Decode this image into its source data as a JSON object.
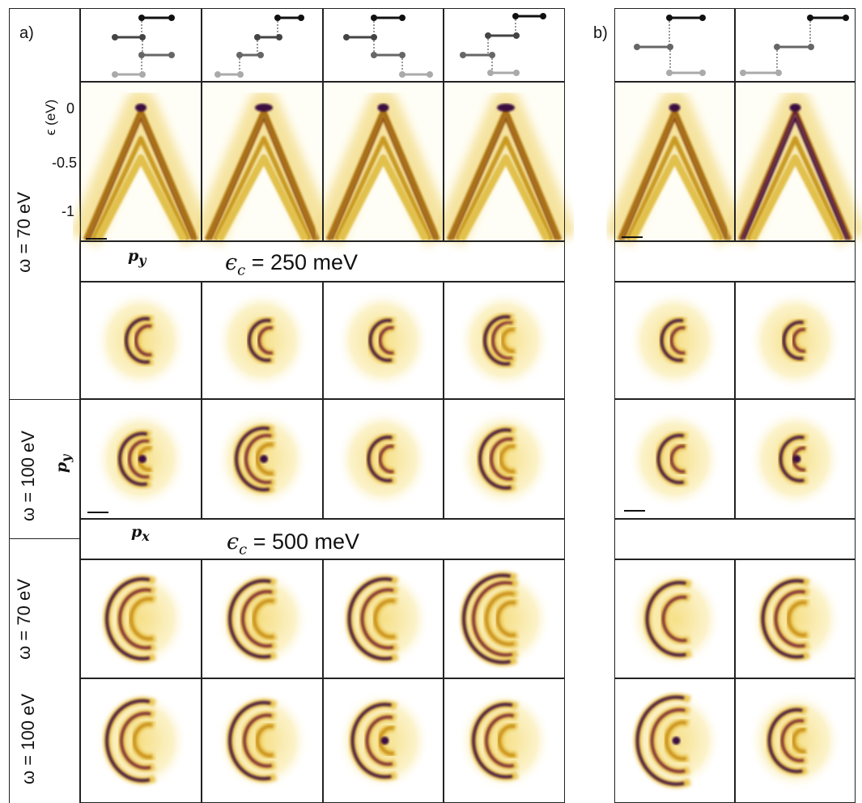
{
  "panel_labels": {
    "a": "a)",
    "b": "b)"
  },
  "row_labels": {
    "omega70_a": "ω = 70 eV",
    "omega100_a": "ω = 100 eV",
    "omega70_b": "ω = 70 eV",
    "omega100_b": "ω = 100 eV"
  },
  "energy_axis": {
    "label": "ϵ (eV)",
    "ticks": [
      "0",
      "-0.5",
      "-1"
    ]
  },
  "momentum_labels": {
    "py_top": "p",
    "py_top_sub": "y",
    "py_side": "p",
    "py_side_sub": "y",
    "px": "p",
    "px_sub": "x"
  },
  "banners": {
    "ec250": {
      "prefix": "ϵ",
      "sub": "c",
      "suffix": " = 250 meV"
    },
    "ec500": {
      "prefix": "ϵ",
      "sub": "c",
      "suffix": " = 500 meV"
    }
  },
  "colors": {
    "low": "#fffef2",
    "mid": "#e9c23c",
    "high": "#c08a10",
    "peak": "#3a0a3f",
    "border": "#222222"
  }
}
